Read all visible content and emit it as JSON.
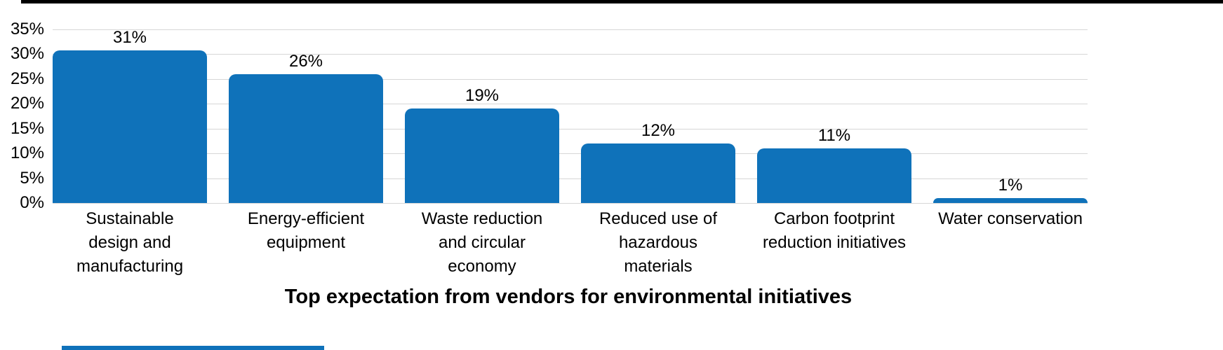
{
  "chart_data": {
    "type": "bar",
    "title": "Top expectation from vendors for environmental initiatives",
    "categories": [
      "Sustainable design and manufacturing",
      "Energy-efficient equipment",
      "Waste reduction and circular economy",
      "Reduced use of hazardous materials",
      "Carbon footprint reduction initiatives",
      "Water conservation"
    ],
    "category_display_lines": [
      [
        "Sustainable",
        "design and",
        "manufacturing"
      ],
      [
        "Energy-efficient",
        "equipment"
      ],
      [
        "Waste reduction",
        "and circular",
        "economy"
      ],
      [
        "Reduced use of",
        "hazardous",
        "materials"
      ],
      [
        "Carbon footprint",
        "reduction initiatives"
      ],
      [
        "Water conservation"
      ]
    ],
    "values": [
      31,
      26,
      19,
      12,
      11,
      1
    ],
    "value_labels": [
      "31%",
      "26%",
      "19%",
      "12%",
      "11%",
      "1%"
    ],
    "y_ticks": [
      "35%",
      "30%",
      "25%",
      "20%",
      "15%",
      "10%",
      "5%",
      "0%"
    ],
    "ylim": [
      0,
      35
    ],
    "grid": true,
    "legend": "none",
    "bar_color": "#0f72ba",
    "gridline_color": "#d6d6d6",
    "top_rule_color": "#000000",
    "bottom_rule_color": "#0f72ba"
  }
}
